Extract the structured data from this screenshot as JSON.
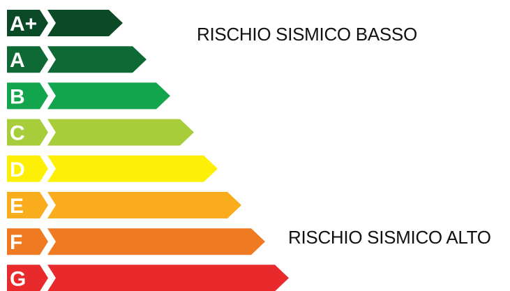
{
  "captions": {
    "low_risk": "RISCHIO SISMICO BASSO",
    "high_risk": "RISCHIO SISMICO ALTO"
  },
  "classes": [
    {
      "label": "A+",
      "color": "#0b4a27"
    },
    {
      "label": "A",
      "color": "#0e6a34"
    },
    {
      "label": "B",
      "color": "#12a54d"
    },
    {
      "label": "C",
      "color": "#a8cd3a"
    },
    {
      "label": "D",
      "color": "#fdf006"
    },
    {
      "label": "E",
      "color": "#f9ad1d"
    },
    {
      "label": "F",
      "color": "#f07a22"
    },
    {
      "label": "G",
      "color": "#e82a2c"
    }
  ]
}
